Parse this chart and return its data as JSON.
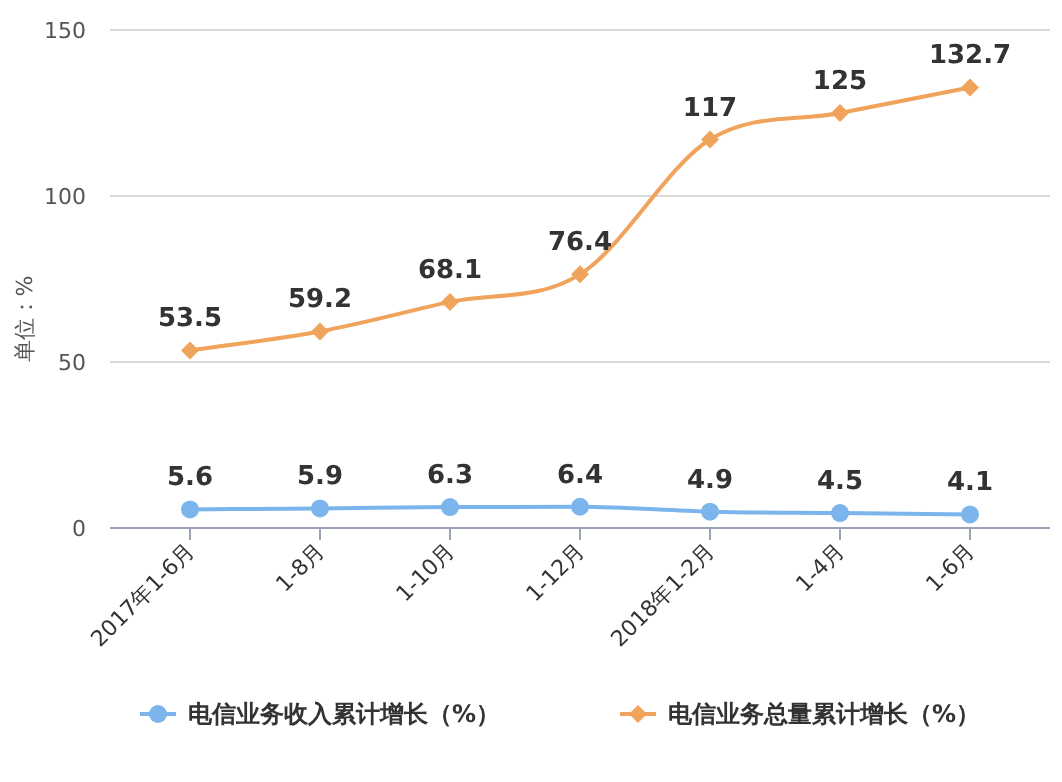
{
  "chart_data": {
    "type": "line",
    "ylabel": "单位：%",
    "categories": [
      "2017年1-6月",
      "1-8月",
      "1-10月",
      "1-12月",
      "2018年1-2月",
      "1-4月",
      "1-6月"
    ],
    "series": [
      {
        "name": "电信业务收入累计增长（%）",
        "color": "#7cb5ec",
        "values": [
          5.6,
          5.9,
          6.3,
          6.4,
          4.9,
          4.5,
          4.1
        ],
        "marker": "circle"
      },
      {
        "name": "电信业务总量累计增长（%）",
        "color": "#f0a35a",
        "values": [
          53.5,
          59.2,
          68.1,
          76.4,
          117,
          125,
          132.7
        ],
        "marker": "diamond"
      }
    ],
    "ylim": [
      0,
      150
    ],
    "yticks": [
      0,
      50,
      100,
      150
    ],
    "grid": "y",
    "legend": "bottom",
    "data_labels": true,
    "line_style": "solid"
  }
}
